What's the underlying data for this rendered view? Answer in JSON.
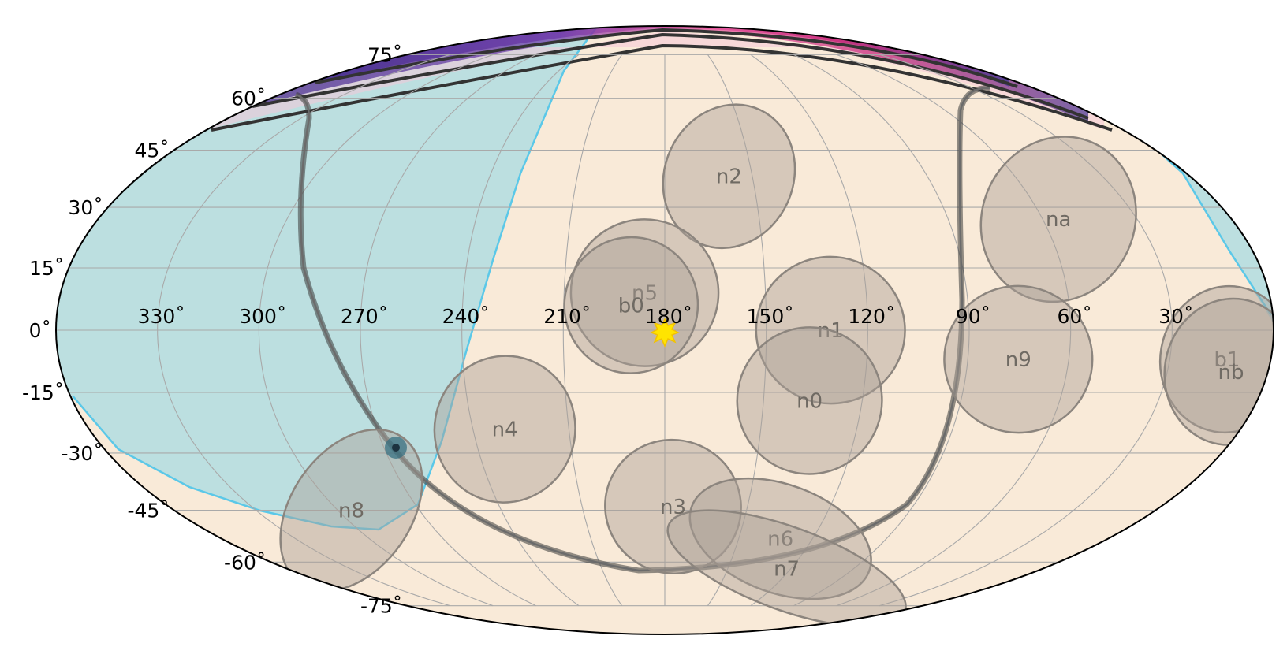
{
  "map": {
    "projection": "mollweide",
    "colors": {
      "background": "#f9ead8",
      "night_region": "#bcdfe0",
      "night_edge": "#5bc8e8",
      "grid": "#a9a9a9",
      "detector_fill": "#b9aca0",
      "detector_edge": "#8c857e",
      "track": "#333333",
      "sun": "#ffe400"
    },
    "lat_labels": [
      "75$^\\circ$",
      "60$^\\circ$",
      "45$^\\circ$",
      "30$^\\circ$",
      "15$^\\circ$",
      "0$^\\circ$",
      "-15$^\\circ$",
      "-30$^\\circ$",
      "-45$^\\circ$",
      "-60$^\\circ$",
      "-75$^\\circ$"
    ],
    "lat_labels_display": [
      "75˚",
      "60˚",
      "45˚",
      "30˚",
      "15˚",
      "0˚",
      "-15˚",
      "-30˚",
      "-45˚",
      "-60˚",
      "-75˚"
    ],
    "lon_labels_display": [
      "330˚",
      "300˚",
      "270˚",
      "240˚",
      "210˚",
      "180˚",
      "150˚",
      "120˚",
      "90˚",
      "60˚",
      "30˚"
    ],
    "lon_label_values": [
      330,
      300,
      270,
      240,
      210,
      180,
      150,
      120,
      90,
      60,
      30
    ],
    "lat_label_values": [
      75,
      60,
      45,
      30,
      15,
      0,
      -15,
      -30,
      -45,
      -60,
      -75
    ],
    "detectors": [
      {
        "name": "n2",
        "lon": 158,
        "lat": 38,
        "rx": 10,
        "ry": 14
      },
      {
        "name": "na",
        "lon": 55,
        "lat": 27,
        "rx": 11,
        "ry": 16
      },
      {
        "name": "n5",
        "lon": 186,
        "lat": 9,
        "rx": 10,
        "ry": 14
      },
      {
        "name": "b0",
        "lon": 190,
        "lat": 6,
        "rx": 9,
        "ry": 13
      },
      {
        "name": "n1",
        "lon": 131,
        "lat": 0,
        "rx": 10,
        "ry": 14
      },
      {
        "name": "n9",
        "lon": 75,
        "lat": -7,
        "rx": 10,
        "ry": 14
      },
      {
        "name": "b1",
        "lon": 13,
        "lat": -7,
        "rx": 9,
        "ry": 14
      },
      {
        "name": "nb",
        "lon": 11,
        "lat": -10,
        "rx": 9,
        "ry": 14
      },
      {
        "name": "n0",
        "lon": 136,
        "lat": -17,
        "rx": 10,
        "ry": 14
      },
      {
        "name": "n4",
        "lon": 230,
        "lat": -24,
        "rx": 10,
        "ry": 14
      },
      {
        "name": "n3",
        "lon": 177,
        "lat": -44,
        "rx": 11,
        "ry": 13
      },
      {
        "name": "n8",
        "lon": 295,
        "lat": -45,
        "rx": 10,
        "ry": 17
      },
      {
        "name": "n6",
        "lon": 133,
        "lat": -53,
        "rx": 10,
        "ry": 18
      },
      {
        "name": "n7",
        "lon": 122,
        "lat": -62,
        "rx": 9,
        "ry": 24
      }
    ],
    "sun": {
      "lon": 180,
      "lat": 0
    },
    "marker": {
      "lon": 268,
      "lat": -27
    }
  }
}
